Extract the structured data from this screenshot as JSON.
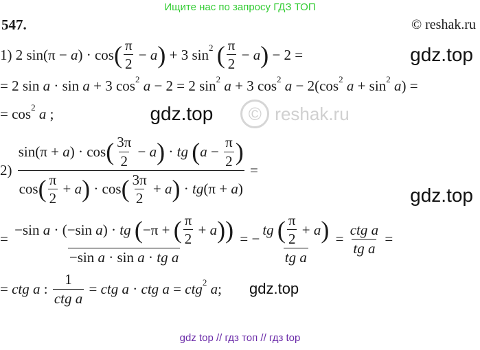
{
  "header": {
    "banner": "Ищите нас по запросу ГДЗ ТОП",
    "task_number": "547.",
    "copyright": "© reshak.ru"
  },
  "watermarks": {
    "gdz": "gdz.top",
    "reshak": "reshak.ru",
    "circle": "©"
  },
  "footer": "gdz top  //  гдз топ  //  гдз top",
  "colors": {
    "banner": "#33cc33",
    "footer": "#6a2aa8"
  },
  "lines": [
    [
      "1) 2 sin(π − ",
      {
        "i": "a"
      },
      ") · cos",
      {
        "p": [
          {
            "f": [
              [
                "π"
              ],
              [
                "2"
              ]
            ]
          },
          " − ",
          {
            "i": "a"
          }
        ]
      },
      " + 3 sin",
      {
        "s": "2"
      },
      " ",
      {
        "p": [
          {
            "f": [
              [
                "π"
              ],
              [
                "2"
              ]
            ]
          },
          " − ",
          {
            "i": "a"
          }
        ]
      },
      " − 2 ="
    ],
    [
      "= 2 sin ",
      {
        "i": "a"
      },
      " · sin ",
      {
        "i": "a"
      },
      " + 3 cos",
      {
        "s": "2"
      },
      " ",
      {
        "i": "a"
      },
      " − 2 = 2 sin",
      {
        "s": "2"
      },
      " ",
      {
        "i": "a"
      },
      " + 3 cos",
      {
        "s": "2"
      },
      " ",
      {
        "i": "a"
      },
      " − 2(cos",
      {
        "s": "2"
      },
      " ",
      {
        "i": "a"
      },
      " + sin",
      {
        "s": "2"
      },
      " ",
      {
        "i": "a"
      },
      ") ="
    ],
    [
      "= cos",
      {
        "s": "2"
      },
      " ",
      {
        "i": "a"
      },
      " ;"
    ],
    [
      "2) ",
      {
        "f": [
          [
            "sin(π + ",
            {
              "i": "a"
            },
            ") · cos",
            {
              "p": [
                {
                  "f": [
                    [
                      "3π"
                    ],
                    [
                      "2"
                    ]
                  ]
                },
                " − ",
                {
                  "i": "a"
                }
              ]
            },
            " · ",
            {
              "i": "tg"
            },
            " ",
            {
              "p": [
                {
                  "i": "a"
                },
                " − ",
                {
                  "f": [
                    [
                      "π"
                    ],
                    [
                      "2"
                    ]
                  ]
                }
              ]
            }
          ],
          [
            "cos",
            {
              "p": [
                {
                  "f": [
                    [
                      "π"
                    ],
                    [
                      "2"
                    ]
                  ]
                },
                " + ",
                {
                  "i": "a"
                }
              ]
            },
            " · cos",
            {
              "p": [
                {
                  "f": [
                    [
                      "3π"
                    ],
                    [
                      "2"
                    ]
                  ]
                },
                " + ",
                {
                  "i": "a"
                }
              ]
            },
            " · ",
            {
              "i": "tg"
            },
            "(π + ",
            {
              "i": "a"
            },
            ")"
          ]
        ]
      },
      " ="
    ],
    [
      "= ",
      {
        "f": [
          [
            "−sin ",
            {
              "i": "a"
            },
            " · (−sin ",
            {
              "i": "a"
            },
            ") · ",
            {
              "i": "tg"
            },
            " ",
            {
              "p": [
                "−π + ",
                {
                  "p": [
                    {
                      "f": [
                        [
                          "π"
                        ],
                        [
                          "2"
                        ]
                      ]
                    },
                    " + ",
                    {
                      "i": "a"
                    }
                  ]
                }
              ]
            }
          ],
          [
            "−sin ",
            {
              "i": "a"
            },
            " · sin ",
            {
              "i": "a"
            },
            " · ",
            {
              "i": "tg a"
            }
          ]
        ]
      },
      " = −",
      {
        "f": [
          [
            {
              "i": "tg"
            },
            " ",
            {
              "p": [
                {
                  "f": [
                    [
                      "π"
                    ],
                    [
                      "2"
                    ]
                  ]
                },
                " + ",
                {
                  "i": "a"
                }
              ]
            }
          ],
          [
            {
              "i": "tg a"
            }
          ]
        ]
      },
      " = ",
      {
        "f": [
          [
            {
              "i": "ctg a"
            }
          ],
          [
            {
              "i": "tg a"
            }
          ]
        ]
      },
      " ="
    ],
    [
      "= ",
      {
        "i": "ctg a"
      },
      " : ",
      {
        "f": [
          [
            "1"
          ],
          [
            {
              "i": "ctg a"
            }
          ]
        ]
      },
      " = ",
      {
        "i": "ctg a"
      },
      " · ",
      {
        "i": "ctg a"
      },
      " = ",
      {
        "i": "ctg"
      },
      {
        "s": "2"
      },
      " ",
      {
        "i": "a"
      },
      ";"
    ]
  ]
}
